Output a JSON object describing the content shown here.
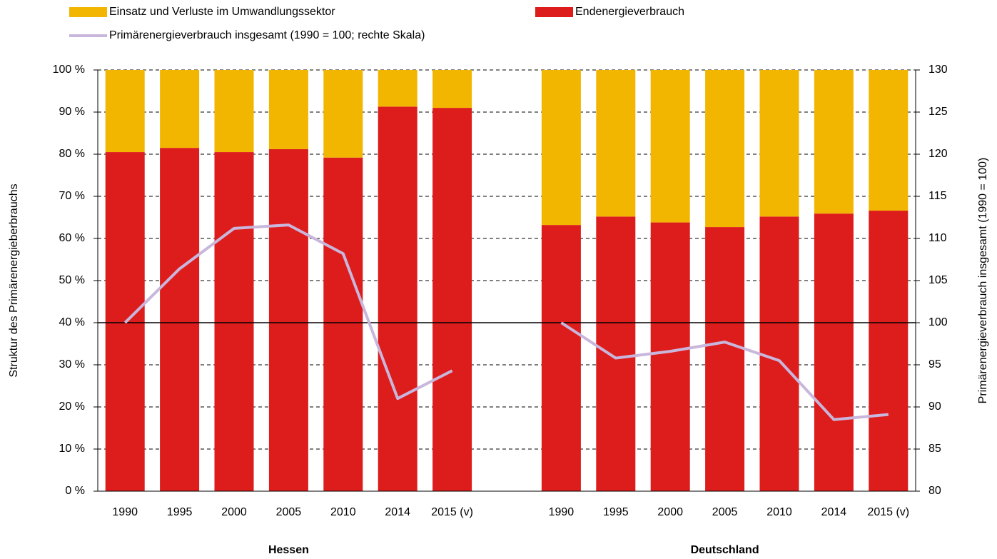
{
  "chart_data": {
    "type": "stacked_bar_line",
    "categories": [
      "1990",
      "1995",
      "2000",
      "2005",
      "2010",
      "2014",
      "2015 (v)",
      null,
      "1990",
      "1995",
      "2000",
      "2005",
      "2010",
      "2014",
      "2015 (v)"
    ],
    "group_labels": [
      "Hessen",
      "Deutschland"
    ],
    "series": [
      {
        "name": "Endenergieverbrauch",
        "color": "#dd1c1c",
        "values": [
          80.5,
          81.5,
          80.5,
          81.2,
          79.2,
          91.3,
          91.0,
          null,
          63.2,
          65.2,
          63.8,
          62.7,
          65.2,
          65.9,
          66.6
        ]
      },
      {
        "name": "Einsatz und Verluste im Umwandlungssektor",
        "color": "#f2b600",
        "values": [
          19.5,
          18.5,
          19.5,
          18.8,
          20.8,
          8.7,
          9.0,
          null,
          36.8,
          34.8,
          36.2,
          37.3,
          34.8,
          34.1,
          33.4
        ]
      },
      {
        "name": "Primärenergieverbrauch insgesamt (1990 = 100; rechte Skala)",
        "color": "#c9b6dc",
        "axis": "y2",
        "type": "line",
        "values": [
          100,
          106.4,
          111.2,
          111.6,
          108.2,
          91.0,
          94.3,
          null,
          100,
          95.8,
          96.6,
          97.7,
          95.5,
          88.5,
          89.1
        ]
      }
    ],
    "legend_order": [
      1,
      0,
      2
    ],
    "ylabel": "Struktur des Primärenergieberbrauchs",
    "y2label": "Primärenergieverbrauch insgesamt (1990 = 100)",
    "ylim": [
      0,
      100
    ],
    "yticks": [
      {
        "value": 0,
        "label": "0 %"
      },
      {
        "value": 10,
        "label": "10 %"
      },
      {
        "value": 20,
        "label": "20 %"
      },
      {
        "value": 30,
        "label": "30 %"
      },
      {
        "value": 40,
        "label": "40 %"
      },
      {
        "value": 50,
        "label": "50 %"
      },
      {
        "value": 60,
        "label": "60 %"
      },
      {
        "value": 70,
        "label": "70 %"
      },
      {
        "value": 80,
        "label": "80 %"
      },
      {
        "value": 90,
        "label": "90 %"
      },
      {
        "value": 100,
        "label": "100 %"
      }
    ],
    "y2lim": [
      80,
      130
    ],
    "y2ticks": [
      80,
      85,
      90,
      95,
      100,
      105,
      110,
      115,
      120,
      125,
      130
    ],
    "y2_reference": 100,
    "grid": true
  }
}
